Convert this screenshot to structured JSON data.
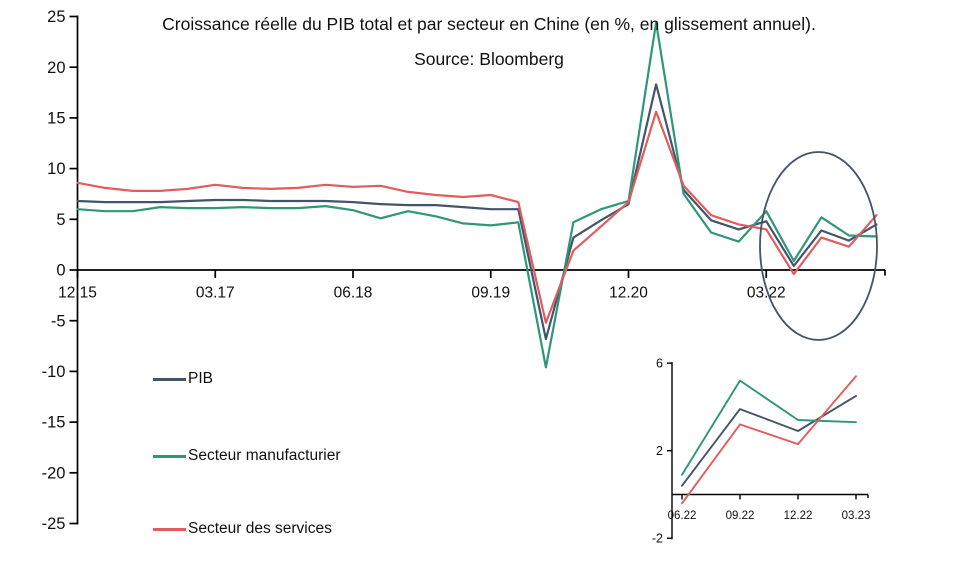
{
  "header": {
    "title": "Croissance réelle du PIB total et par secteur en Chine (en %, en glissement annuel).",
    "subtitle": "Source: Bloomberg"
  },
  "colors": {
    "pib": "#44546a",
    "manufacturier": "#2e9778",
    "services": "#e15d5d",
    "axis": "#000000",
    "ellipse": "#44546a"
  },
  "legend": [
    {
      "id": "pib",
      "label": "PIB"
    },
    {
      "id": "manufacturier",
      "label": "Secteur manufacturier"
    },
    {
      "id": "services",
      "label": "Secteur des services"
    }
  ],
  "chart_data": [
    {
      "name": "main-chart",
      "type": "line",
      "title": "Croissance réelle du PIB total et par secteur en Chine (en %, en glissement annuel).",
      "subtitle": "Source: Bloomberg",
      "ylim": [
        -25,
        25
      ],
      "y_ticks": [
        25,
        20,
        15,
        10,
        5,
        0,
        -5,
        -10,
        -15,
        -20,
        -25
      ],
      "x": [
        "12.15",
        "03.16",
        "06.16",
        "09.16",
        "12.16",
        "03.17",
        "06.17",
        "09.17",
        "12.17",
        "03.18",
        "06.18",
        "09.18",
        "12.18",
        "03.19",
        "06.19",
        "09.19",
        "12.19",
        "03.20",
        "06.20",
        "09.20",
        "12.20",
        "03.21",
        "06.21",
        "09.21",
        "12.21",
        "03.22",
        "06.22",
        "09.22",
        "12.22",
        "03.23"
      ],
      "x_tick_labels": [
        "12.15",
        "03.17",
        "06.18",
        "09.19",
        "12.20",
        "03.22"
      ],
      "x_tick_indices": [
        0,
        5,
        10,
        15,
        20,
        25
      ],
      "grid": false,
      "legend_position": "bottom-left",
      "series": [
        {
          "name": "PIB",
          "color_key": "pib",
          "values": [
            6.8,
            6.7,
            6.7,
            6.7,
            6.8,
            6.9,
            6.9,
            6.8,
            6.8,
            6.8,
            6.7,
            6.5,
            6.4,
            6.4,
            6.2,
            6.0,
            6.0,
            -6.8,
            3.2,
            4.9,
            6.5,
            18.3,
            7.9,
            4.9,
            4.0,
            4.8,
            0.4,
            3.9,
            2.9,
            4.5
          ]
        },
        {
          "name": "Secteur manufacturier",
          "color_key": "manufacturier",
          "values": [
            6.0,
            5.8,
            5.8,
            6.2,
            6.1,
            6.1,
            6.2,
            6.1,
            6.1,
            6.3,
            5.9,
            5.1,
            5.8,
            5.3,
            4.6,
            4.4,
            4.7,
            -9.6,
            4.7,
            6.0,
            6.8,
            24.4,
            7.5,
            3.7,
            2.8,
            5.8,
            0.9,
            5.2,
            3.4,
            3.3
          ]
        },
        {
          "name": "Secteur des services",
          "color_key": "services",
          "values": [
            8.6,
            8.1,
            7.8,
            7.8,
            8.0,
            8.4,
            8.1,
            8.0,
            8.1,
            8.4,
            8.2,
            8.3,
            7.7,
            7.4,
            7.2,
            7.4,
            6.7,
            -5.2,
            1.9,
            4.3,
            6.7,
            15.6,
            8.3,
            5.4,
            4.5,
            4.0,
            -0.4,
            3.2,
            2.3,
            5.4
          ]
        }
      ],
      "annotation": {
        "shape": "ellipse",
        "covers_x_labels": [
          "03.22",
          "03.23"
        ],
        "meaning": "highlight of recent quarters"
      }
    },
    {
      "name": "inset-chart",
      "type": "line",
      "ylim": [
        -2,
        6
      ],
      "y_ticks": [
        6,
        2,
        -2
      ],
      "x": [
        "06.22",
        "09.22",
        "12.22",
        "03.23"
      ],
      "x_tick_labels": [
        "06.22",
        "09.22",
        "12.22",
        "03.23"
      ],
      "x_tick_indices": [
        0,
        1,
        2,
        3
      ],
      "grid": false,
      "series": [
        {
          "name": "PIB",
          "color_key": "pib",
          "values": [
            0.4,
            3.9,
            2.9,
            4.5
          ]
        },
        {
          "name": "Secteur manufacturier",
          "color_key": "manufacturier",
          "values": [
            0.9,
            5.2,
            3.4,
            3.3
          ]
        },
        {
          "name": "Secteur des services",
          "color_key": "services",
          "values": [
            -0.4,
            3.2,
            2.3,
            5.4
          ]
        }
      ]
    }
  ]
}
